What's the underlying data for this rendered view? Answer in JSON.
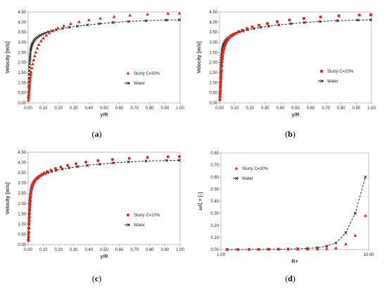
{
  "chart_data": [
    {
      "type": "scatter",
      "panel_label": "a",
      "xlabel": "y/R",
      "ylabel": "Velocity [m/s]",
      "xlim": [
        0,
        1
      ],
      "ylim": [
        0,
        4.5
      ],
      "x_ticks": [
        "0.00",
        "0.10",
        "0.20",
        "0.30",
        "0.40",
        "0.50",
        "0.60",
        "0.70",
        "0.80",
        "0.90",
        "1.00"
      ],
      "y_ticks": [
        "0.00",
        "0.50",
        "1.00",
        "1.50",
        "2.00",
        "2.50",
        "3.00",
        "3.50",
        "4.00",
        "4.50"
      ],
      "legend_position": "right",
      "series": [
        {
          "name": "Slurry C=30%",
          "marker": "triangle",
          "color": "#e8211d",
          "x": [
            0.002,
            0.003,
            0.004,
            0.005,
            0.006,
            0.007,
            0.008,
            0.009,
            0.01,
            0.012,
            0.014,
            0.016,
            0.018,
            0.02,
            0.025,
            0.03,
            0.036,
            0.043,
            0.05,
            0.06,
            0.07,
            0.085,
            0.1,
            0.12,
            0.14,
            0.165,
            0.195,
            0.235,
            0.28,
            0.335,
            0.4,
            0.475,
            0.565,
            0.67,
            0.785,
            0.92,
            0.995
          ],
          "y": [
            0.12,
            0.22,
            0.32,
            0.42,
            0.52,
            0.62,
            0.72,
            0.82,
            0.92,
            1.04,
            1.16,
            1.28,
            1.4,
            1.52,
            1.72,
            1.92,
            2.12,
            2.32,
            2.5,
            2.7,
            2.88,
            3.06,
            3.2,
            3.34,
            3.46,
            3.58,
            3.7,
            3.81,
            3.91,
            4.01,
            4.1,
            4.18,
            4.26,
            4.33,
            4.38,
            4.42,
            4.43
          ]
        },
        {
          "name": "Water",
          "marker": "cross-dashed-line",
          "color": "#111111",
          "x": [
            0.002,
            0.003,
            0.004,
            0.005,
            0.006,
            0.007,
            0.008,
            0.009,
            0.01,
            0.011,
            0.012,
            0.013,
            0.014,
            0.016,
            0.018,
            0.02,
            0.023,
            0.026,
            0.03,
            0.035,
            0.04,
            0.046,
            0.053,
            0.061,
            0.07,
            0.081,
            0.094,
            0.11,
            0.13,
            0.155,
            0.185,
            0.225,
            0.27,
            0.325,
            0.39,
            0.47,
            0.56,
            0.66,
            0.775,
            0.91,
            0.995
          ],
          "y": [
            0.3,
            0.55,
            0.8,
            1.02,
            1.22,
            1.42,
            1.6,
            1.78,
            1.95,
            2.08,
            2.2,
            2.32,
            2.42,
            2.56,
            2.66,
            2.74,
            2.83,
            2.9,
            2.96,
            3.03,
            3.09,
            3.15,
            3.2,
            3.25,
            3.3,
            3.35,
            3.4,
            3.45,
            3.51,
            3.56,
            3.62,
            3.68,
            3.74,
            3.8,
            3.86,
            3.92,
            3.98,
            4.03,
            4.07,
            4.1,
            4.11
          ]
        }
      ]
    },
    {
      "type": "scatter",
      "panel_label": "b",
      "xlabel": "y/R",
      "ylabel": "Velocity [m/s]",
      "xlim": [
        0,
        1
      ],
      "ylim": [
        0,
        4.5
      ],
      "x_ticks": [
        "0.00",
        "0.10",
        "0.20",
        "0.30",
        "0.40",
        "0.50",
        "0.60",
        "0.70",
        "0.80",
        "0.90",
        "1.00"
      ],
      "y_ticks": [
        "0.00",
        "0.50",
        "1.00",
        "1.50",
        "2.00",
        "2.50",
        "3.00",
        "3.50",
        "4.00",
        "4.50"
      ],
      "legend_position": "right",
      "series": [
        {
          "name": "Slurry C=20%",
          "marker": "square",
          "color": "#e8211d",
          "x": [
            0.002,
            0.003,
            0.004,
            0.005,
            0.006,
            0.007,
            0.008,
            0.009,
            0.01,
            0.011,
            0.012,
            0.014,
            0.016,
            0.018,
            0.02,
            0.023,
            0.026,
            0.03,
            0.035,
            0.041,
            0.048,
            0.056,
            0.065,
            0.076,
            0.089,
            0.105,
            0.125,
            0.15,
            0.18,
            0.215,
            0.26,
            0.315,
            0.38,
            0.46,
            0.555,
            0.665,
            0.785,
            0.92,
            0.995
          ],
          "y": [
            0.15,
            0.3,
            0.45,
            0.6,
            0.75,
            0.9,
            1.05,
            1.2,
            1.35,
            1.5,
            1.62,
            1.84,
            2.02,
            2.18,
            2.32,
            2.48,
            2.6,
            2.72,
            2.84,
            2.95,
            3.05,
            3.14,
            3.22,
            3.3,
            3.38,
            3.45,
            3.53,
            3.6,
            3.68,
            3.76,
            3.84,
            3.93,
            4.02,
            4.1,
            4.18,
            4.25,
            4.31,
            4.35,
            4.36
          ]
        },
        {
          "name": "Water",
          "marker": "cross-dashed-line",
          "color": "#111111",
          "x": [
            0.002,
            0.003,
            0.004,
            0.005,
            0.006,
            0.007,
            0.008,
            0.009,
            0.01,
            0.011,
            0.012,
            0.013,
            0.014,
            0.016,
            0.018,
            0.02,
            0.023,
            0.026,
            0.03,
            0.035,
            0.04,
            0.046,
            0.053,
            0.061,
            0.07,
            0.081,
            0.094,
            0.11,
            0.13,
            0.155,
            0.185,
            0.225,
            0.27,
            0.325,
            0.39,
            0.47,
            0.56,
            0.66,
            0.775,
            0.91,
            0.995
          ],
          "y": [
            0.3,
            0.55,
            0.8,
            1.02,
            1.22,
            1.42,
            1.6,
            1.78,
            1.95,
            2.08,
            2.2,
            2.32,
            2.42,
            2.56,
            2.66,
            2.74,
            2.83,
            2.9,
            2.96,
            3.03,
            3.09,
            3.15,
            3.2,
            3.25,
            3.3,
            3.35,
            3.4,
            3.45,
            3.51,
            3.56,
            3.62,
            3.68,
            3.74,
            3.8,
            3.86,
            3.92,
            3.98,
            4.03,
            4.07,
            4.1,
            4.11
          ]
        }
      ]
    },
    {
      "type": "scatter",
      "panel_label": "c",
      "xlabel": "y/R",
      "ylabel": "Velocity [m/s]",
      "xlim": [
        0,
        1
      ],
      "ylim": [
        0,
        4.5
      ],
      "x_ticks": [
        "0.00",
        "0.10",
        "0.20",
        "0.30",
        "0.40",
        "0.50",
        "0.60",
        "0.70",
        "0.80",
        "0.90",
        "1.00"
      ],
      "y_ticks": [
        "0.00",
        "0.50",
        "1.00",
        "1.50",
        "2.00",
        "2.50",
        "3.00",
        "3.50",
        "4.00",
        "4.50"
      ],
      "legend_position": "right",
      "series": [
        {
          "name": "Slurry C=10%",
          "marker": "circle",
          "color": "#e8211d",
          "x": [
            0.002,
            0.003,
            0.004,
            0.005,
            0.006,
            0.007,
            0.008,
            0.009,
            0.01,
            0.011,
            0.012,
            0.013,
            0.014,
            0.016,
            0.018,
            0.02,
            0.023,
            0.026,
            0.03,
            0.035,
            0.041,
            0.048,
            0.056,
            0.065,
            0.076,
            0.089,
            0.105,
            0.125,
            0.15,
            0.18,
            0.215,
            0.26,
            0.315,
            0.38,
            0.46,
            0.555,
            0.665,
            0.785,
            0.92,
            0.995
          ],
          "y": [
            0.2,
            0.4,
            0.6,
            0.8,
            0.98,
            1.16,
            1.34,
            1.52,
            1.68,
            1.82,
            1.95,
            2.06,
            2.16,
            2.34,
            2.48,
            2.58,
            2.7,
            2.8,
            2.89,
            2.98,
            3.06,
            3.14,
            3.21,
            3.28,
            3.35,
            3.42,
            3.49,
            3.56,
            3.63,
            3.71,
            3.78,
            3.86,
            3.94,
            4.02,
            4.09,
            4.15,
            4.2,
            4.25,
            4.28,
            4.29
          ]
        },
        {
          "name": "Water",
          "marker": "cross-dashed-line",
          "color": "#111111",
          "x": [
            0.002,
            0.003,
            0.004,
            0.005,
            0.006,
            0.007,
            0.008,
            0.009,
            0.01,
            0.011,
            0.012,
            0.013,
            0.014,
            0.016,
            0.018,
            0.02,
            0.023,
            0.026,
            0.03,
            0.035,
            0.04,
            0.046,
            0.053,
            0.061,
            0.07,
            0.081,
            0.094,
            0.11,
            0.13,
            0.155,
            0.185,
            0.225,
            0.27,
            0.325,
            0.39,
            0.47,
            0.56,
            0.66,
            0.775,
            0.91,
            0.995
          ],
          "y": [
            0.3,
            0.55,
            0.8,
            1.02,
            1.22,
            1.42,
            1.6,
            1.78,
            1.95,
            2.08,
            2.2,
            2.32,
            2.42,
            2.56,
            2.66,
            2.74,
            2.83,
            2.9,
            2.96,
            3.03,
            3.09,
            3.15,
            3.2,
            3.25,
            3.3,
            3.35,
            3.4,
            3.45,
            3.51,
            3.56,
            3.62,
            3.68,
            3.74,
            3.8,
            3.86,
            3.92,
            3.98,
            4.03,
            4.07,
            4.1,
            4.11
          ]
        }
      ]
    },
    {
      "type": "scatter",
      "panel_label": "d",
      "xlabel": "R+",
      "ylabel": "ω/ζ = [-]",
      "xscale": "log",
      "xlim": [
        1,
        10
      ],
      "ylim": [
        0,
        0.8
      ],
      "x_ticks": [
        "1.00",
        "10.00"
      ],
      "y_ticks": [
        "0.00",
        "0.10",
        "0.20",
        "0.30",
        "0.40",
        "0.50",
        "0.60",
        "0.70",
        "0.80"
      ],
      "legend_position": "left",
      "series": [
        {
          "name": "Slurry C=30%",
          "marker": "triangle",
          "color": "#e8211d",
          "x": [
            1.1,
            1.3,
            1.55,
            1.8,
            2.1,
            2.45,
            2.85,
            3.3,
            3.85,
            4.5,
            5.2,
            6.0,
            7.0,
            8.1,
            9.5
          ],
          "y": [
            0.0,
            0.0,
            0.001,
            0.001,
            0.001,
            0.002,
            0.002,
            0.003,
            0.003,
            0.004,
            0.006,
            0.012,
            0.045,
            0.115,
            0.28
          ]
        },
        {
          "name": "Water",
          "marker": "cross-dashed-line",
          "color": "#111111",
          "x": [
            1.1,
            1.3,
            1.55,
            1.8,
            2.1,
            2.45,
            2.85,
            3.3,
            3.85,
            4.5,
            5.2,
            6.0,
            7.0,
            8.1,
            9.5
          ],
          "y": [
            0.0,
            0.0,
            0.001,
            0.001,
            0.002,
            0.003,
            0.004,
            0.006,
            0.009,
            0.015,
            0.028,
            0.055,
            0.14,
            0.3,
            0.6
          ]
        }
      ]
    }
  ]
}
